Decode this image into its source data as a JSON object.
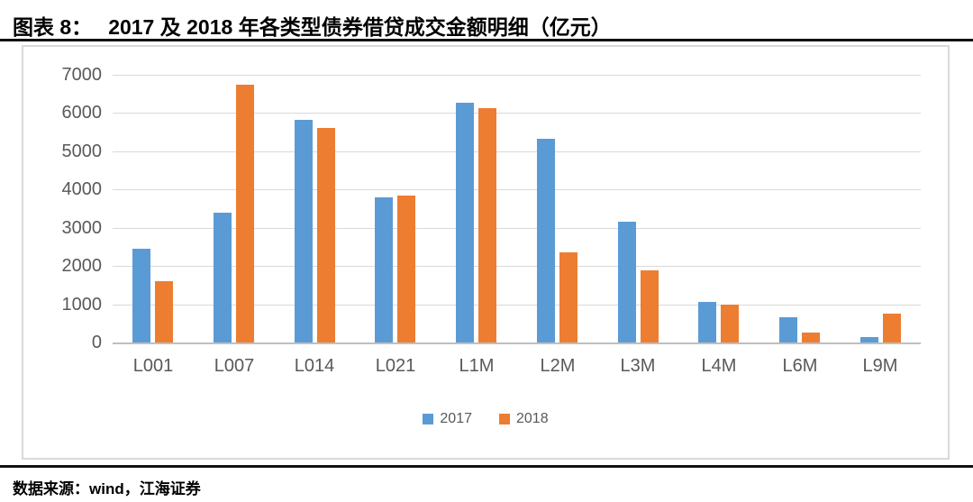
{
  "header": {
    "figure_label": "图表 8：",
    "title": "2017 及 2018 年各类型债券借贷成交金额明细（亿元）"
  },
  "chart_data": {
    "type": "bar",
    "title": "2017 及 2018 年各类型债券借贷成交金额明细（亿元）",
    "categories": [
      "L001",
      "L007",
      "L014",
      "L021",
      "L1M",
      "L2M",
      "L3M",
      "L4M",
      "L6M",
      "L9M"
    ],
    "series": [
      {
        "name": "2017",
        "color": "#5B9BD5",
        "values": [
          2450,
          3400,
          5820,
          3790,
          6280,
          5320,
          3150,
          1070,
          670,
          150
        ]
      },
      {
        "name": "2018",
        "color": "#ED7D31",
        "values": [
          1600,
          6740,
          5600,
          3850,
          6130,
          2350,
          1880,
          1000,
          260,
          750
        ]
      }
    ],
    "xlabel": "",
    "ylabel": "",
    "ylim": [
      0,
      7000
    ],
    "yticks": [
      0,
      1000,
      2000,
      3000,
      4000,
      5000,
      6000,
      7000
    ],
    "grid": true,
    "legend_position": "bottom",
    "colors": {
      "gridline": "#D9D9D9",
      "axis_line": "#BFBFBF",
      "tick_label": "#595959",
      "chart_border": "#D9D9D9",
      "divider_line": "#111111"
    }
  },
  "footer": {
    "source": "数据来源：wind，江海证券"
  }
}
